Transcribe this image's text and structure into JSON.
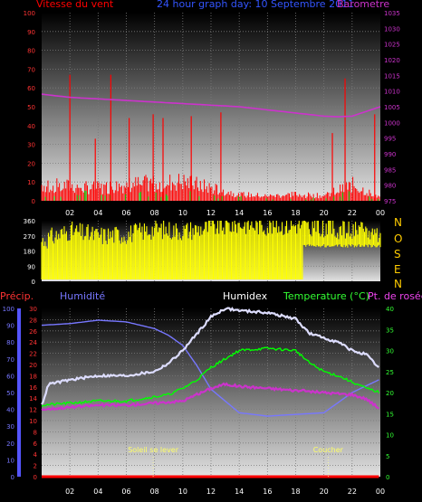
{
  "header": {
    "left_label": "Vitesse du vent",
    "center_label": "24 hour graph day: 10 Septembre 2011",
    "right_label": "Barometre"
  },
  "compass": [
    "N",
    "O",
    "S",
    "E",
    "N"
  ],
  "colors": {
    "wind": "#ff0000",
    "gust": "#00cc00",
    "barometer": "#cc33cc",
    "direction": "#ffff00",
    "humidity": "#7777ff",
    "humidex": "#ddddff",
    "temperature": "#00ff00",
    "dewpoint": "#cc33cc",
    "rain": "#ff0000",
    "grid": "#7a7a7a"
  },
  "chart_data": [
    {
      "type": "line",
      "title": "24 hour graph day: 10 Septembre 2011",
      "left_axis": {
        "label": "Vitesse du vent",
        "ticks": [
          "0",
          "10",
          "20",
          "30",
          "40",
          "50",
          "60",
          "70",
          "80",
          "90",
          "100"
        ],
        "ylim": [
          0,
          100
        ]
      },
      "right_axis": {
        "label": "Barometre",
        "ticks": [
          "975",
          "980",
          "985",
          "990",
          "995",
          "1000",
          "1005",
          "1010",
          "1015",
          "1020",
          "1025",
          "1030",
          "1035"
        ],
        "ylim": [
          975,
          1035
        ]
      },
      "x_ticks": [
        "02",
        "04",
        "06",
        "08",
        "10",
        "12",
        "14",
        "16",
        "18",
        "20",
        "22",
        "00"
      ],
      "series": [
        {
          "name": "Vitesse du vent",
          "axis": "left",
          "x": [
            0,
            2,
            4,
            6,
            8,
            10,
            12,
            14,
            16,
            18,
            20,
            22,
            24
          ],
          "values": [
            10,
            9,
            8,
            10,
            11,
            12,
            8,
            4,
            3,
            4,
            3,
            10,
            2
          ]
        },
        {
          "name": "Barometre",
          "axis": "right",
          "x": [
            0,
            2,
            4,
            6,
            8,
            10,
            12,
            14,
            16,
            18,
            20,
            21,
            22,
            23,
            24
          ],
          "values": [
            1009,
            1008,
            1007.5,
            1007,
            1006.5,
            1006,
            1005.5,
            1005,
            1004,
            1003,
            1002,
            1001.8,
            1002,
            1003.5,
            1005
          ]
        }
      ],
      "gust_peaks": [
        {
          "x": 2.0,
          "value": 67
        },
        {
          "x": 3.8,
          "value": 33
        },
        {
          "x": 4.9,
          "value": 67
        },
        {
          "x": 6.2,
          "value": 44
        },
        {
          "x": 7.9,
          "value": 46
        },
        {
          "x": 8.6,
          "value": 44
        },
        {
          "x": 10.6,
          "value": 45
        },
        {
          "x": 12.7,
          "value": 47
        },
        {
          "x": 20.6,
          "value": 36
        },
        {
          "x": 21.5,
          "value": 65
        },
        {
          "x": 23.6,
          "value": 46
        }
      ]
    },
    {
      "type": "bar",
      "title": "",
      "y_ticks": [
        "0",
        "90",
        "180",
        "270",
        "360"
      ],
      "ylim": [
        0,
        360
      ],
      "x": [
        0,
        2,
        4,
        6,
        8,
        10,
        12,
        14,
        16,
        18,
        20,
        22,
        24
      ],
      "values": [
        240,
        300,
        270,
        280,
        310,
        300,
        320,
        340,
        330,
        335,
        320,
        300,
        290
      ]
    },
    {
      "type": "line",
      "labels": {
        "precip": "Précip.",
        "humidity": "Humidité",
        "humidex": "Humidex",
        "temperature": "Temperature (°C)",
        "dewpoint": "Pt. de rosée"
      },
      "precip_axis": {
        "ticks": [
          "0",
          "2",
          "4",
          "6",
          "8",
          "10",
          "12",
          "14",
          "16",
          "18",
          "20",
          "22",
          "24",
          "26",
          "28",
          "30"
        ],
        "ylim": [
          0,
          30
        ]
      },
      "humidity_axis": {
        "ticks": [
          "0",
          "10",
          "20",
          "30",
          "40",
          "50",
          "60",
          "70",
          "80",
          "90",
          "100"
        ],
        "ylim": [
          0,
          100
        ]
      },
      "temp_axis": {
        "ticks": [
          "0",
          "5",
          "10",
          "15",
          "20",
          "25",
          "30",
          "35",
          "40"
        ],
        "ylim": [
          0,
          40
        ]
      },
      "x_ticks": [
        "02",
        "04",
        "06",
        "08",
        "10",
        "12",
        "14",
        "16",
        "18",
        "20",
        "22",
        "00"
      ],
      "series": [
        {
          "name": "Humidité",
          "axis": "humidity",
          "x": [
            0,
            2,
            4,
            6,
            8,
            9,
            10,
            11,
            12,
            14,
            16,
            18,
            20,
            21,
            22,
            23,
            24
          ],
          "values": [
            90,
            91,
            93,
            92,
            88,
            84,
            78,
            66,
            52,
            38,
            36,
            37,
            38,
            44,
            50,
            54,
            58
          ]
        },
        {
          "name": "Humidex",
          "axis": "temp",
          "x": [
            0,
            0.5,
            2,
            4,
            6,
            8,
            9,
            10,
            11,
            12,
            13,
            14,
            16,
            18,
            19,
            20,
            21,
            22,
            23,
            24
          ],
          "values": [
            17,
            22,
            23,
            24,
            24,
            25,
            27,
            30,
            34,
            38,
            40,
            39.5,
            39,
            37.5,
            34,
            33,
            32,
            30,
            29,
            25.5
          ]
        },
        {
          "name": "Temperature (°C)",
          "axis": "temp",
          "x": [
            0,
            2,
            4,
            6,
            8,
            9,
            10,
            11,
            12,
            13,
            14,
            16,
            18,
            19,
            20,
            21,
            22,
            23,
            24
          ],
          "values": [
            17,
            17.5,
            18,
            18,
            19,
            19.5,
            21,
            23,
            26,
            28,
            30,
            30.5,
            30,
            27,
            25,
            24,
            22.5,
            21,
            20
          ]
        },
        {
          "name": "Pt. de rosée",
          "axis": "temp",
          "x": [
            0,
            2,
            4,
            6,
            8,
            10,
            12,
            13,
            14,
            16,
            18,
            20,
            22,
            23,
            24
          ],
          "values": [
            16,
            16.5,
            17,
            17,
            17.5,
            18,
            21,
            22,
            21.5,
            21,
            20.5,
            20,
            19.5,
            18.5,
            16
          ]
        },
        {
          "name": "Précip.",
          "axis": "precip",
          "x": [
            0,
            24
          ],
          "values": [
            0,
            0
          ]
        }
      ],
      "annotations": [
        {
          "text": "Soleil se lever",
          "x": 7.9
        },
        {
          "text": "Coucher",
          "x": 20.3
        }
      ]
    }
  ]
}
